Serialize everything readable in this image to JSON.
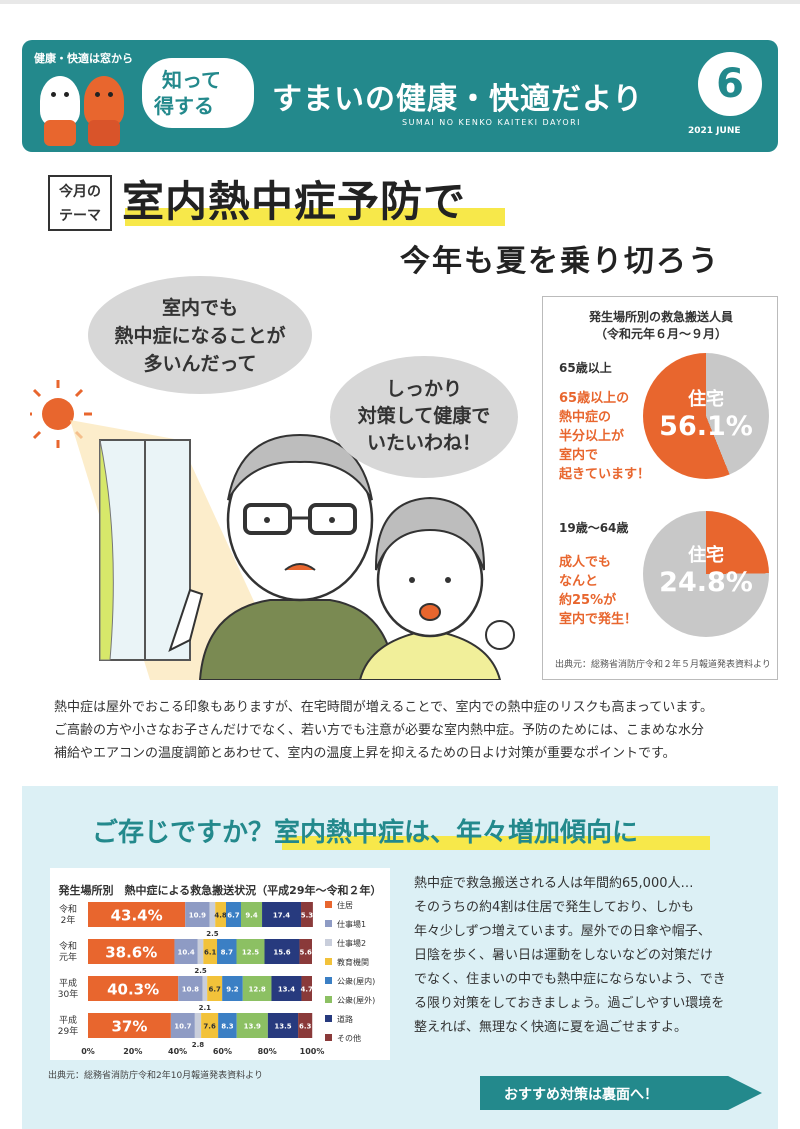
{
  "header": {
    "tagline": "健康・快適は窓から",
    "know_line1": "知って",
    "know_line2": "得する",
    "title": "すまいの健康・快適だより",
    "subtitle": "SUMAI NO KENKO KAITEKI DAYORI",
    "issue_number": "6",
    "issue_date": "2021 JUNE"
  },
  "theme": {
    "tag_line1": "今月の",
    "tag_line2": "テーマ",
    "main": "室内熱中症予防で",
    "sub": "今年も夏を乗り切ろう"
  },
  "speech": {
    "man_line1": "室内でも",
    "man_line2": "熱中症になることが",
    "man_line3": "多いんだって",
    "woman_line1": "しっかり",
    "woman_line2": "対策して健康で",
    "woman_line3": "いたいわね！"
  },
  "panel": {
    "title_line1": "発生場所別の救急搬送人員",
    "title_line2": "（令和元年６月〜９月）",
    "group1_label": "65歳以上",
    "group1_text": [
      "65歳以上の",
      "熱中症の",
      "半分以上が",
      "室内で",
      "起きています！"
    ],
    "group1_pie_label": "住宅",
    "group1_pie_value": "56.1%",
    "group1_pie_pct": 56.1,
    "group2_label": "19歳〜64歳",
    "group2_text": [
      "成人でも",
      "なんと",
      "約25%が",
      "室内で発生！"
    ],
    "group2_pie_label": "住宅",
    "group2_pie_value": "24.8%",
    "group2_pie_pct": 24.8,
    "source": "出典元：総務省消防庁令和２年５月報道発表資料より",
    "colors": {
      "highlight": "#e8662e",
      "rest": "#c8c8c8"
    }
  },
  "paragraph": [
    "熱中症は屋外でおこる印象もありますが、在宅時間が増えることで、室内での熱中症のリスクも高まっています。",
    "ご高齢の方や小さなお子さんだけでなく、若い方でも注意が必要な室内熱中症。予防のためには、こまめな水分",
    "補給やエアコンの温度調節とあわせて、室内の温度上昇を抑えるための日よけ対策が重要なポイントです。"
  ],
  "section": {
    "title": "ご存じですか？室内熱中症は、年々増加傾向に",
    "right_text": [
      "熱中症で救急搬送される人は年間約65,000人…",
      "そのうちの約4割は住居で発生しており、しかも",
      "年々少しずつ増えています。屋外での日傘や帽子、",
      "日陰を歩く、暑い日は運動をしないなどの対策だけ",
      "でなく、住まいの中でも熱中症にならないよう、でき",
      "る限り対策をしておきましょう。過ごしやすい環境を",
      "整えれば、無理なく快適に夏を過ごせますよ。"
    ],
    "cta": "おすすめ対策は裏面へ！",
    "chart_source": "出典元：総務省消防庁令和2年10月報道発表資料より"
  },
  "chart_data": {
    "type": "bar",
    "orientation": "horizontal-stacked-100",
    "title": "発生場所別　熱中症による救急搬送状況（平成29年〜令和２年）",
    "categories": [
      [
        "令和",
        "2年"
      ],
      [
        "令和",
        "元年"
      ],
      [
        "平成",
        "30年"
      ],
      [
        "平成",
        "29年"
      ]
    ],
    "x_ticks": [
      "0%",
      "20%",
      "40%",
      "60%",
      "80%",
      "100%"
    ],
    "xlim": [
      0,
      100
    ],
    "legend_position": "right",
    "series": [
      {
        "name": "住居",
        "color": "#e8662e",
        "values": [
          43.4,
          38.6,
          40.3,
          37
        ],
        "labels": [
          "43.4%",
          "38.6%",
          "40.3%",
          "37%"
        ]
      },
      {
        "name": "仕事場1",
        "color": "#8e9bc4",
        "values": [
          10.9,
          10.4,
          10.8,
          10.7
        ],
        "labels": [
          "10.9",
          "10.4",
          "10.8",
          "10.7"
        ]
      },
      {
        "name": "仕事場2",
        "color": "#c9cedb",
        "values": [
          2.5,
          2.5,
          2.1,
          2.8
        ],
        "labels": [
          "2.5",
          "2.5",
          "2.1",
          "2.8"
        ]
      },
      {
        "name": "教育機関",
        "color": "#f2c23a",
        "values": [
          4.8,
          6.1,
          6.7,
          7.6
        ],
        "labels": [
          "4.8",
          "6.1",
          "6.7",
          "7.6"
        ]
      },
      {
        "name": "公衆(屋内)",
        "color": "#3b7fc4",
        "values": [
          6.7,
          8.7,
          9.2,
          8.3
        ],
        "labels": [
          "6.7",
          "8.7",
          "9.2",
          "8.3"
        ]
      },
      {
        "name": "公衆(屋外)",
        "color": "#8cc063",
        "values": [
          9.4,
          12.5,
          12.8,
          13.9
        ],
        "labels": [
          "9.4",
          "12.5",
          "12.8",
          "13.9"
        ]
      },
      {
        "name": "道路",
        "color": "#273a7e",
        "values": [
          17.4,
          15.6,
          13.4,
          13.5
        ],
        "labels": [
          "17.4",
          "15.6",
          "13.4",
          "13.5"
        ]
      },
      {
        "name": "その他",
        "color": "#8a3a3a",
        "values": [
          5.3,
          5.6,
          4.7,
          6.3
        ],
        "labels": [
          "5.3",
          "5.6",
          "4.7",
          "6.3"
        ]
      }
    ]
  }
}
